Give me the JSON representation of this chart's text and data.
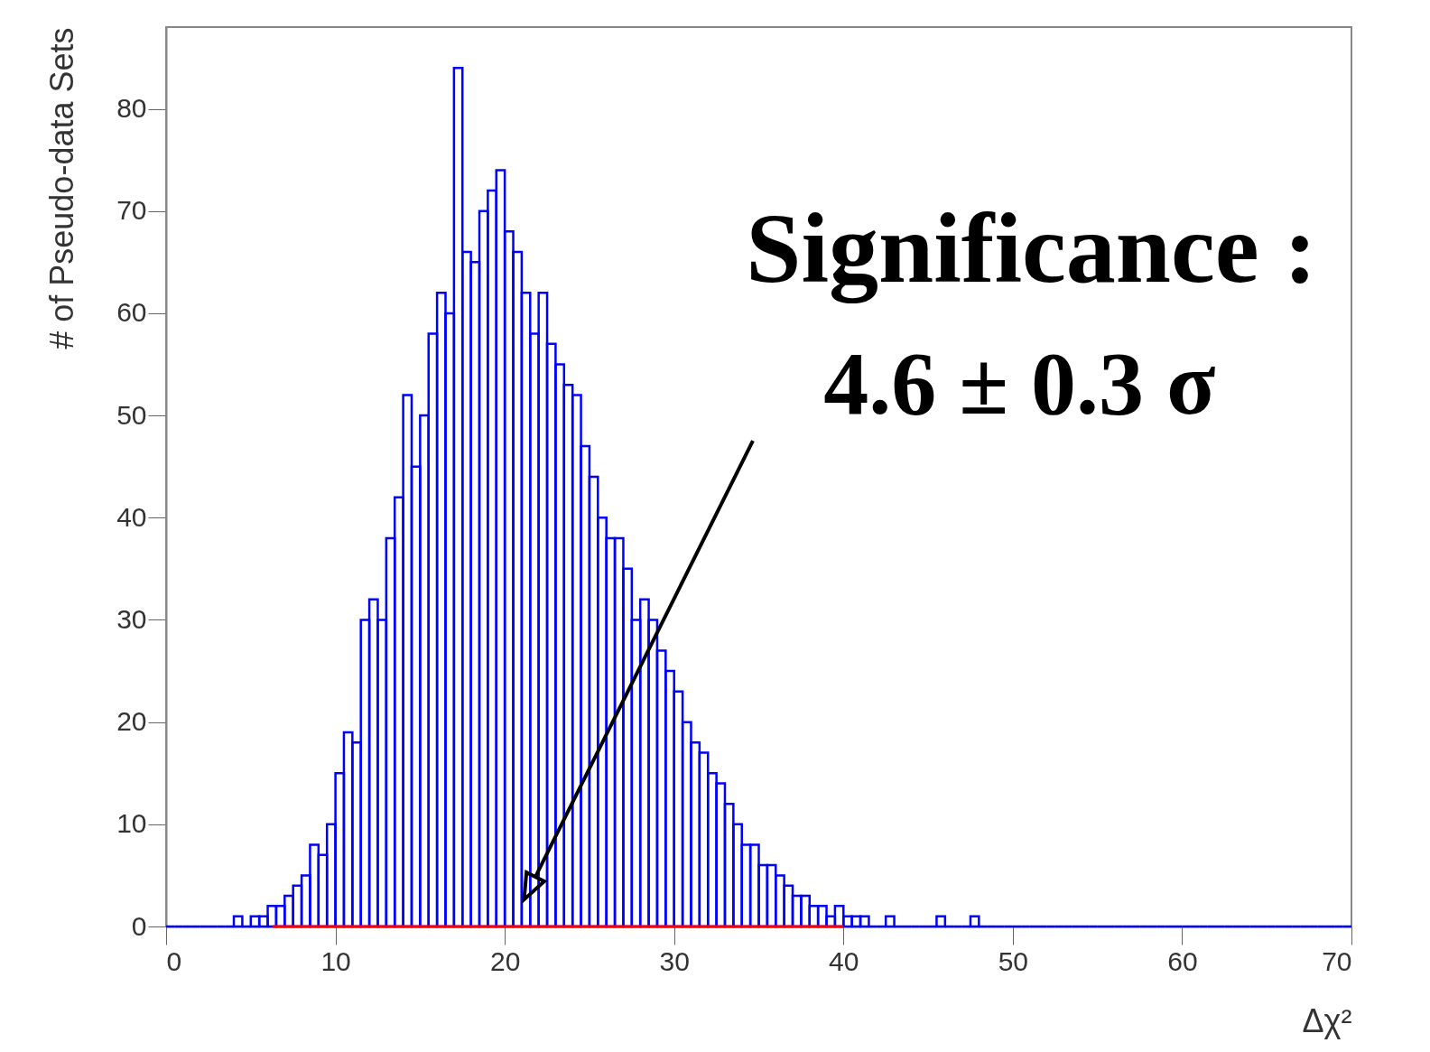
{
  "chart_data": {
    "type": "histogram",
    "xlabel": "Δχ²",
    "ylabel": "# of Pseudo-data Sets",
    "bins": [
      0,
      0.5,
      1,
      1.5,
      2,
      2.5,
      3,
      3.5,
      4,
      4.5,
      5,
      5.5,
      6,
      6.5,
      7,
      7.5,
      8,
      8.5,
      9,
      9.5,
      10,
      10.5,
      11,
      11.5,
      12,
      12.5,
      13,
      13.5,
      14,
      14.5,
      15,
      15.5,
      16,
      16.5,
      17,
      17.5,
      18,
      18.5,
      19,
      19.5,
      20,
      20.5,
      21,
      21.5,
      22,
      22.5,
      23,
      23.5,
      24,
      24.5,
      25,
      25.5,
      26,
      26.5,
      27,
      27.5,
      28,
      28.5,
      29,
      29.5,
      30,
      30.5,
      31,
      31.5,
      32,
      32.5,
      33,
      33.5,
      34,
      34.5,
      35,
      35.5,
      36,
      36.5,
      37,
      37.5,
      38,
      38.5,
      39,
      39.5,
      40,
      40.5,
      41,
      41.5,
      42,
      42.5,
      43,
      43.5,
      44,
      44.5,
      45,
      45.5,
      46,
      46.5,
      47,
      47.5,
      48,
      48.5,
      49,
      49.5,
      50,
      50.5,
      51,
      51.5,
      52,
      52.5,
      53,
      53.5,
      54,
      54.5,
      55,
      55.5,
      56,
      56.5,
      57,
      57.5,
      58,
      58.5,
      59,
      59.5,
      60,
      60.5,
      61,
      61.5,
      62,
      62.5,
      63,
      63.5,
      64,
      64.5,
      65,
      65.5,
      66,
      66.5,
      67,
      67.5,
      68,
      68.5,
      69,
      69.5,
      70
    ],
    "series": [
      {
        "color": "#0000ff",
        "values": [
          0,
          0,
          0,
          0,
          0,
          0,
          0,
          0,
          1,
          0,
          1,
          1,
          2,
          2,
          3,
          4,
          5,
          8,
          7,
          10,
          15,
          19,
          18,
          30,
          32,
          30,
          38,
          42,
          52,
          45,
          50,
          58,
          62,
          60,
          84,
          66,
          65,
          70,
          72,
          74,
          68,
          66,
          62,
          58,
          62,
          57,
          55,
          53,
          52,
          47,
          44,
          40,
          38,
          38,
          35,
          30,
          32,
          30,
          27,
          25,
          23,
          20,
          18,
          17,
          15,
          14,
          12,
          10,
          8,
          8,
          6,
          6,
          5,
          4,
          3,
          3,
          2,
          2,
          1,
          2,
          1,
          1,
          1,
          0,
          0,
          1,
          0,
          0,
          0,
          0,
          0,
          1,
          0,
          0,
          0,
          1,
          0,
          0,
          0,
          0,
          0,
          0,
          0,
          0,
          0,
          0,
          0,
          0,
          0,
          0,
          0,
          0,
          0,
          0,
          0,
          0,
          0,
          0,
          0,
          0,
          0,
          0,
          0,
          0,
          0,
          0,
          0,
          0,
          0,
          0,
          0,
          0,
          0,
          0,
          0,
          0,
          0,
          0,
          0,
          0
        ]
      },
      {
        "type": "line",
        "color": "#ff0000",
        "x": [
          6.3,
          40
        ],
        "values": [
          0,
          0
        ]
      }
    ],
    "xlim": [
      0,
      70
    ],
    "xticks": [
      0,
      10,
      20,
      30,
      40,
      50,
      60,
      70
    ],
    "ylim": [
      0,
      88
    ],
    "yticks": [
      0,
      10,
      20,
      30,
      40,
      50,
      60,
      70,
      80
    ],
    "grid": false,
    "annotations": [
      "Significance :",
      "4.6 ± 0.3 σ"
    ]
  }
}
